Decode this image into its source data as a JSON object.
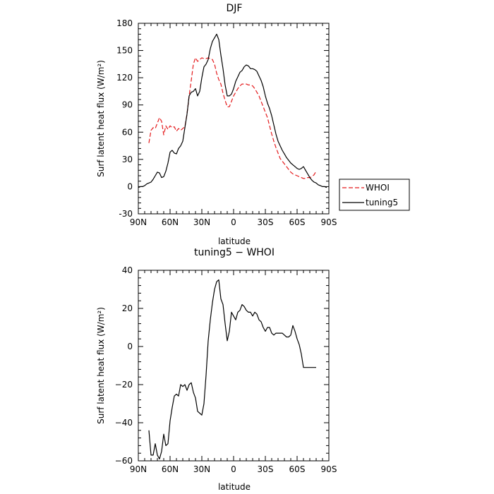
{
  "chart_data": [
    {
      "type": "line",
      "title": "DJF",
      "xlabel": "latitude",
      "ylabel": "Surf latent heat flux (W/m²)",
      "xlim": [
        90,
        -90
      ],
      "ylim": [
        -30,
        180
      ],
      "xticks": [
        90,
        60,
        30,
        0,
        -30,
        -60,
        -90
      ],
      "xtick_labels": [
        "90N",
        "60N",
        "30N",
        "0",
        "30S",
        "60S",
        "90S"
      ],
      "yticks": [
        -30,
        0,
        30,
        60,
        90,
        120,
        150,
        180
      ],
      "ytick_labels": [
        "-30",
        "0",
        "30",
        "60",
        "90",
        "120",
        "150",
        "180"
      ],
      "legend_position": "right",
      "series": [
        {
          "name": "WHOI",
          "color": "#e41a1c",
          "dash": true,
          "x": [
            80,
            78,
            76,
            74,
            72,
            70,
            68,
            66,
            64,
            62,
            60,
            58,
            56,
            54,
            52,
            50,
            48,
            46,
            44,
            42,
            40,
            38,
            36,
            34,
            32,
            30,
            28,
            26,
            24,
            22,
            20,
            18,
            16,
            14,
            12,
            10,
            8,
            6,
            4,
            2,
            0,
            -2,
            -4,
            -6,
            -8,
            -10,
            -12,
            -14,
            -16,
            -18,
            -20,
            -22,
            -24,
            -26,
            -28,
            -30,
            -32,
            -34,
            -36,
            -38,
            -40,
            -42,
            -44,
            -46,
            -48,
            -50,
            -52,
            -54,
            -56,
            -58,
            -60,
            -62,
            -64,
            -66,
            -68,
            -70,
            -72,
            -74,
            -76,
            -78
          ],
          "y": [
            48,
            62,
            65,
            64,
            70,
            76,
            72,
            57,
            67,
            63,
            67,
            65,
            66,
            61,
            64,
            62,
            64,
            66,
            80,
            100,
            117,
            135,
            142,
            138,
            140,
            142,
            141,
            141,
            142,
            141,
            140,
            135,
            125,
            118,
            113,
            103,
            95,
            88,
            88,
            94,
            100,
            104,
            108,
            111,
            113,
            113,
            113,
            112,
            112,
            111,
            108,
            104,
            100,
            94,
            88,
            82,
            76,
            67,
            58,
            50,
            43,
            37,
            31,
            28,
            25,
            22,
            19,
            16,
            14,
            13,
            12,
            11,
            10,
            9,
            9,
            10,
            10,
            11,
            13,
            17
          ]
        },
        {
          "name": "tuning5",
          "color": "#000000",
          "dash": false,
          "x": [
            90,
            88,
            86,
            84,
            82,
            80,
            78,
            76,
            74,
            72,
            70,
            68,
            66,
            64,
            62,
            60,
            58,
            56,
            54,
            52,
            50,
            48,
            46,
            44,
            42,
            40,
            38,
            36,
            34,
            32,
            30,
            28,
            26,
            24,
            22,
            20,
            18,
            16,
            14,
            12,
            10,
            8,
            6,
            4,
            2,
            0,
            -2,
            -4,
            -6,
            -8,
            -10,
            -12,
            -14,
            -16,
            -18,
            -20,
            -22,
            -24,
            -26,
            -28,
            -30,
            -32,
            -34,
            -36,
            -38,
            -40,
            -42,
            -44,
            -46,
            -48,
            -50,
            -52,
            -54,
            -56,
            -58,
            -60,
            -62,
            -64,
            -66,
            -68,
            -70,
            -72,
            -74,
            -76,
            -78,
            -80,
            -82,
            -84,
            -86,
            -88
          ],
          "y": [
            -1,
            0,
            0,
            1,
            3,
            4,
            5,
            8,
            12,
            16,
            15,
            10,
            11,
            17,
            26,
            38,
            40,
            37,
            36,
            42,
            45,
            50,
            65,
            80,
            100,
            104,
            105,
            108,
            100,
            105,
            120,
            132,
            135,
            140,
            152,
            160,
            164,
            168,
            162,
            145,
            130,
            112,
            100,
            100,
            102,
            108,
            116,
            121,
            126,
            128,
            132,
            134,
            133,
            130,
            130,
            129,
            127,
            122,
            117,
            110,
            100,
            92,
            86,
            78,
            68,
            58,
            50,
            45,
            40,
            36,
            32,
            29,
            26,
            24,
            22,
            20,
            19,
            20,
            22,
            18,
            14,
            10,
            7,
            5,
            4,
            2,
            1,
            0,
            0,
            -1
          ]
        }
      ]
    },
    {
      "type": "line",
      "title": "tuning5 − WHOI",
      "xlabel": "latitude",
      "ylabel": "Surf latent heat flux (W/m²)",
      "xlim": [
        90,
        -90
      ],
      "ylim": [
        -60,
        40
      ],
      "xticks": [
        90,
        60,
        30,
        0,
        -30,
        -60,
        -90
      ],
      "xtick_labels": [
        "90N",
        "60N",
        "30N",
        "0",
        "30S",
        "60S",
        "90S"
      ],
      "yticks": [
        -60,
        -40,
        -20,
        0,
        20,
        40
      ],
      "ytick_labels": [
        "−60",
        "−40",
        "−20",
        "0",
        "20",
        "40"
      ],
      "series": [
        {
          "name": "tuning5 − WHOI",
          "color": "#000000",
          "dash": false,
          "x": [
            80,
            78,
            76,
            74,
            72,
            70,
            68,
            66,
            64,
            62,
            60,
            58,
            56,
            54,
            52,
            50,
            48,
            46,
            44,
            42,
            40,
            38,
            36,
            34,
            32,
            30,
            28,
            26,
            24,
            22,
            20,
            18,
            16,
            14,
            12,
            10,
            8,
            6,
            4,
            2,
            0,
            -2,
            -4,
            -6,
            -8,
            -10,
            -12,
            -14,
            -16,
            -18,
            -20,
            -22,
            -24,
            -26,
            -28,
            -30,
            -32,
            -34,
            -36,
            -38,
            -40,
            -42,
            -44,
            -46,
            -48,
            -50,
            -52,
            -54,
            -56,
            -58,
            -60,
            -62,
            -64,
            -66,
            -68,
            -70,
            -72,
            -74,
            -76,
            -78
          ],
          "y": [
            -44,
            -57,
            -57,
            -51,
            -57,
            -59,
            -55,
            -46,
            -52,
            -51,
            -39,
            -32,
            -26,
            -25,
            -26,
            -20,
            -21,
            -20,
            -23,
            -20,
            -19,
            -24,
            -27,
            -34,
            -35,
            -36,
            -30,
            -15,
            3,
            14,
            23,
            30,
            34,
            35,
            25,
            22,
            12,
            3,
            8,
            18,
            16,
            14,
            18,
            19,
            22,
            21,
            19,
            18,
            18,
            16,
            18,
            17,
            14,
            13,
            10,
            8,
            10,
            10,
            7,
            6,
            7,
            7,
            7,
            7,
            6,
            5,
            5,
            6,
            11,
            8,
            4,
            1,
            -4,
            -11,
            -11,
            -11,
            -11,
            -11,
            -11,
            -11
          ]
        }
      ]
    }
  ]
}
